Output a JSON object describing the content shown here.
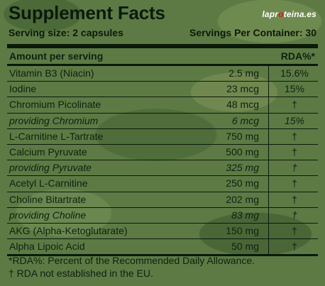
{
  "title": "Supplement Facts",
  "logo": {
    "before": "lapr",
    "dot": "o",
    "after": "teina.es"
  },
  "serving": {
    "size_label": "Serving size: 2 capsules",
    "container_label": "Servings Per Container: 30"
  },
  "header": {
    "amount": "Amount per serving",
    "rda": "RDA%*"
  },
  "rows": [
    {
      "name": "Vitamin B3 (Niacin)",
      "amount": "2.5 mg",
      "rda": "15.6%",
      "sub": false
    },
    {
      "name": "Iodine",
      "amount": "23 mcg",
      "rda": "15%",
      "sub": false
    },
    {
      "name": "Chromium Picolinate",
      "amount": "48 mcg",
      "rda": "†",
      "sub": false
    },
    {
      "name": "providing Chromium",
      "amount": "6 mcg",
      "rda": "15%",
      "sub": true
    },
    {
      "name": "L-Carnitine L-Tartrate",
      "amount": "750 mg",
      "rda": "†",
      "sub": false
    },
    {
      "name": "Calcium Pyruvate",
      "amount": "500 mg",
      "rda": "†",
      "sub": false
    },
    {
      "name": "providing Pyruvate",
      "amount": "325 mg",
      "rda": "†",
      "sub": true
    },
    {
      "name": "Acetyl L-Carnitine",
      "amount": "250 mg",
      "rda": "†",
      "sub": false
    },
    {
      "name": "Choline Bitartrate",
      "amount": "202 mg",
      "rda": "†",
      "sub": false
    },
    {
      "name": "providing Choline",
      "amount": "83 mg",
      "rda": "†",
      "sub": true
    },
    {
      "name": "AKG (Alpha-Ketoglutarate)",
      "amount": "150 mg",
      "rda": "†",
      "sub": false
    },
    {
      "name": "Alpha Lipoic Acid",
      "amount": "50 mg",
      "rda": "†",
      "sub": false
    }
  ],
  "footnotes": {
    "rda": "*RDA%: Percent of the Recommended Daily Allowance.",
    "dagger": "† RDA not established in the EU."
  }
}
